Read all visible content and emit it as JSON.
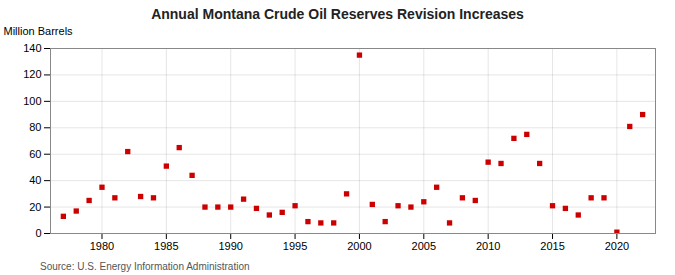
{
  "chart_data": {
    "type": "scatter",
    "title": "Annual Montana Crude Oil Reserves Revision Increases",
    "ylabel": "Million Barrels",
    "source": "Source: U.S. Energy Information Administration",
    "color": "#cc0000",
    "marker": "square",
    "grid": true,
    "xlim": [
      1976,
      2023
    ],
    "xticks": [
      1980,
      1985,
      1990,
      1995,
      2000,
      2005,
      2010,
      2015,
      2020
    ],
    "ylim": [
      0,
      140
    ],
    "yticks": [
      0,
      20,
      40,
      60,
      80,
      100,
      120,
      140
    ],
    "x": [
      1977,
      1978,
      1979,
      1980,
      1981,
      1982,
      1983,
      1984,
      1985,
      1986,
      1987,
      1988,
      1989,
      1990,
      1991,
      1992,
      1993,
      1994,
      1995,
      1996,
      1997,
      1998,
      1999,
      2000,
      2001,
      2002,
      2003,
      2004,
      2005,
      2006,
      2007,
      2008,
      2009,
      2010,
      2011,
      2012,
      2013,
      2014,
      2015,
      2016,
      2017,
      2018,
      2019,
      2020,
      2021,
      2022
    ],
    "values": [
      13,
      17,
      25,
      35,
      27,
      62,
      28,
      27,
      51,
      65,
      44,
      20,
      20,
      20,
      26,
      19,
      14,
      16,
      21,
      9,
      8,
      8,
      30,
      135,
      22,
      9,
      21,
      20,
      24,
      35,
      8,
      27,
      25,
      54,
      53,
      72,
      75,
      53,
      21,
      19,
      14,
      27,
      27,
      1,
      81,
      90
    ]
  }
}
